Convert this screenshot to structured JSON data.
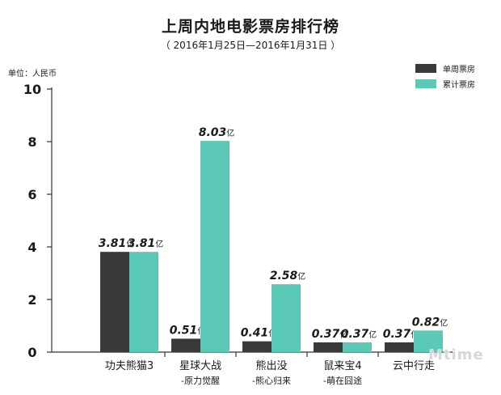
{
  "chart_data": {
    "type": "bar",
    "title": "上周内地电影票房排行榜",
    "subtitle": "（ 2016年1月25日—2016年1月31日 ）",
    "unit_label": "单位：人民币",
    "categories": [
      [
        "功夫熊猫3",
        ""
      ],
      [
        "星球大战",
        "-原力觉醒"
      ],
      [
        "熊出没",
        "-熊心归来"
      ],
      [
        "鼠来宝4",
        "-萌在囧途"
      ],
      [
        "云中行走",
        ""
      ]
    ],
    "series": [
      {
        "name": "单周票房",
        "color": "#3b3838",
        "values": [
          3.81,
          0.51,
          0.41,
          0.37,
          0.37
        ]
      },
      {
        "name": "累计票房",
        "color": "#5cc8b6",
        "values": [
          3.81,
          8.03,
          2.58,
          0.37,
          0.82
        ]
      }
    ],
    "value_labels": [
      [
        "3.81",
        "0.51",
        "0.41",
        "0.37",
        "0.37"
      ],
      [
        "3.81",
        "8.03",
        "2.58",
        "0.37",
        "0.82"
      ]
    ],
    "value_suffix": "亿",
    "ylim": [
      0,
      10
    ],
    "yticks": [
      0,
      2,
      4,
      6,
      8,
      10
    ],
    "legend": "top-right",
    "grid": false
  },
  "watermark": "Mtime"
}
